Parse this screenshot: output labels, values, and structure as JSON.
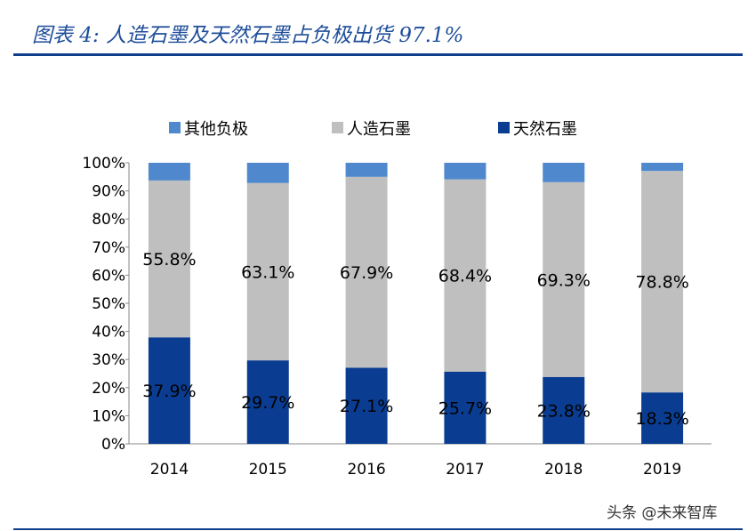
{
  "header": {
    "title": "图表 4:  人造石墨及天然石墨占负极出货 97.1%"
  },
  "watermark": "头条 @未来智库",
  "chart_data": {
    "type": "bar",
    "stacked": true,
    "categories": [
      "2014",
      "2015",
      "2016",
      "2017",
      "2018",
      "2019"
    ],
    "series": [
      {
        "name": "天然石墨",
        "color": "#0a3d91",
        "values": [
          37.9,
          29.7,
          27.1,
          25.7,
          23.8,
          18.3
        ],
        "labels": [
          "37.9%",
          "29.7%",
          "27.1%",
          "25.7%",
          "23.8%",
          "18.3%"
        ]
      },
      {
        "name": "人造石墨",
        "color": "#bfbfbf",
        "values": [
          55.8,
          63.1,
          67.9,
          68.4,
          69.3,
          78.8
        ],
        "labels": [
          "55.8%",
          "63.1%",
          "67.9%",
          "68.4%",
          "69.3%",
          "78.8%"
        ]
      },
      {
        "name": "其他负极",
        "color": "#4f88cc",
        "values": [
          6.3,
          7.2,
          5.0,
          5.9,
          6.9,
          2.9
        ]
      }
    ],
    "legend_order": [
      "其他负极",
      "人造石墨",
      "天然石墨"
    ],
    "legend_placement": "top",
    "ylim": [
      0,
      100
    ],
    "yticks": [
      "0%",
      "10%",
      "20%",
      "30%",
      "40%",
      "50%",
      "60%",
      "70%",
      "80%",
      "90%",
      "100%"
    ],
    "grid": false
  }
}
